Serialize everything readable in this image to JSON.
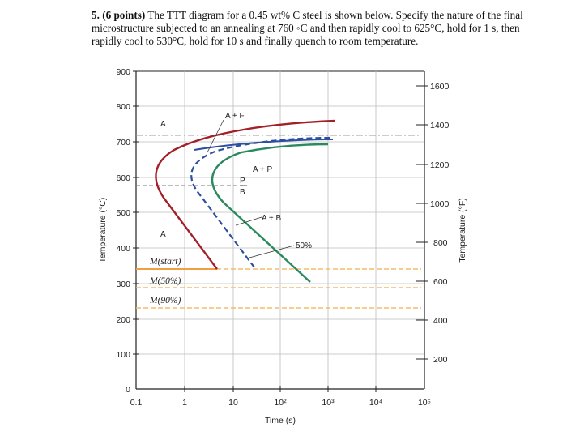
{
  "question": {
    "number": "5.",
    "points": "(6 points)",
    "text": "The TTT diagram for a 0.45 wt% C steel is shown below. Specify the nature of the final microstructure subjected to an annealing at 760 ◦C and then rapidly cool to 625°C, hold for 1 s, then rapidly cool to 530°C, hold for 10 s and finally quench to room temperature."
  },
  "diagram": {
    "y_axis_label": "Temperature (°C)",
    "y2_axis_label": "Temperature (°F)",
    "x_axis_label": "Time (s)",
    "y_ticks": [
      "900",
      "800",
      "700",
      "600",
      "500",
      "400",
      "300",
      "200",
      "100",
      "0"
    ],
    "y2_ticks": [
      "1600",
      "1400",
      "1200",
      "1000",
      "800",
      "600",
      "400",
      "200"
    ],
    "x_ticks": [
      "0.1",
      "1",
      "10",
      "10²",
      "10³",
      "10⁴",
      "10⁵"
    ],
    "regions": {
      "a_top": "A",
      "a_plus_f": "A + F",
      "a_plus_p": "A + P",
      "p": "P",
      "b": "B",
      "a_plus_b": "A + B",
      "a_lower": "A",
      "fifty_percent": "50%"
    },
    "martensite": {
      "start": "M(start)",
      "fifty": "M(50%)",
      "ninety": "M(90%)"
    },
    "colors": {
      "curve_red": "#a31f2a",
      "curve_blue": "#2d4fa0",
      "curve_green": "#2a8a5e",
      "m_line_orange": "#f0a040",
      "m_dashed_orange": "#f4bc6a",
      "grid_gray": "#bdbdbd"
    }
  }
}
